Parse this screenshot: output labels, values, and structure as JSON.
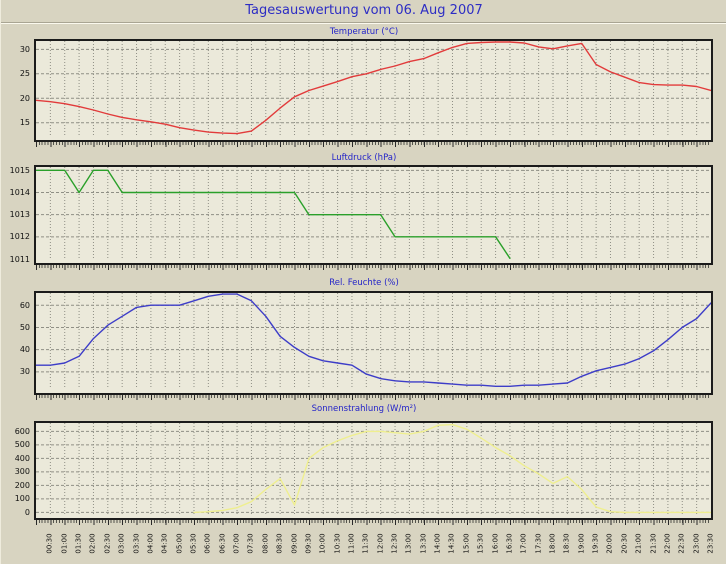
{
  "page": {
    "title": "Tagesauswertung vom 06. Aug 2007",
    "date": "06. Aug 2007"
  },
  "colors": {
    "page_background": "#d8d4c1",
    "plot_background": "#ebe9da",
    "grid": "#8f8f85",
    "title_blue": "#2d2dc4",
    "temperature_line": "#e23b3b",
    "pressure_line": "#2aa02a",
    "humidity_line": "#3d3dc8",
    "radiation_line": "#efef8f"
  },
  "time_labels": [
    "00:30",
    "01:00",
    "01:30",
    "02:00",
    "02:30",
    "03:00",
    "03:30",
    "04:00",
    "04:30",
    "05:00",
    "05:30",
    "06:00",
    "06:30",
    "07:00",
    "07:30",
    "08:00",
    "08:30",
    "09:00",
    "09:30",
    "10:00",
    "10:30",
    "11:00",
    "11:30",
    "12:00",
    "12:30",
    "13:00",
    "13:30",
    "14:00",
    "14:30",
    "15:00",
    "15:30",
    "16:00",
    "16:30",
    "17:00",
    "17:30",
    "18:00",
    "18:30",
    "19:00",
    "19:30",
    "20:00",
    "20:30",
    "21:00",
    "21:30",
    "22:00",
    "22:30",
    "23:00",
    "23:30"
  ],
  "chart_data": [
    {
      "type": "line",
      "title": "Temperatur (°C)",
      "unit": "°C",
      "color": "#e23b3b",
      "x_start": "00:00",
      "x_interval_min": 30,
      "ymin": 12.3,
      "ymax": 31.7,
      "yticks": [
        15,
        20,
        25,
        30
      ],
      "values": [
        19.6,
        19.3,
        18.9,
        18.3,
        17.6,
        16.8,
        16.1,
        15.6,
        15.2,
        14.7,
        14.0,
        13.5,
        13.1,
        12.9,
        12.8,
        13.3,
        15.5,
        18.0,
        20.3,
        21.6,
        22.5,
        23.4,
        24.4,
        25.0,
        25.9,
        26.6,
        27.5,
        28.1,
        29.3,
        30.4,
        31.2,
        31.4,
        31.5,
        31.5,
        31.3,
        30.5,
        30.1,
        30.7,
        31.2,
        26.9,
        25.4,
        24.3,
        23.2,
        22.8,
        22.7,
        22.7,
        22.4,
        21.6
      ]
    },
    {
      "type": "line",
      "title": "Luftdruck (hPa)",
      "unit": "hPa",
      "color": "#2aa02a",
      "x_start": "00:00",
      "x_interval_min": 30,
      "ymin": 1011,
      "ymax": 1015.15,
      "yticks": [
        1011,
        1012,
        1013,
        1014,
        1015
      ],
      "values": [
        1015,
        1015,
        1015,
        1014,
        1015,
        1015,
        1014,
        1014,
        1014,
        1014,
        1014,
        1014,
        1014,
        1014,
        1014,
        1014,
        1014,
        1014,
        1014,
        1013,
        1013,
        1013,
        1013,
        1013,
        1013,
        1012,
        1012,
        1012,
        1012,
        1012,
        1012,
        1012,
        1012,
        1011,
        null,
        null,
        null,
        null,
        null,
        null,
        null,
        null,
        null,
        null,
        null,
        null,
        null,
        null
      ]
    },
    {
      "type": "line",
      "title": "Rel. Feuchte (%)",
      "unit": "%",
      "color": "#3d3dc8",
      "x_start": "00:00",
      "x_interval_min": 30,
      "ymin": 22.3,
      "ymax": 65.5,
      "yticks": [
        30,
        40,
        50,
        60
      ],
      "values": [
        33,
        33,
        34,
        37,
        45,
        51,
        55,
        59,
        60,
        60,
        60,
        62,
        64,
        65,
        65,
        62,
        55,
        46,
        41,
        37,
        35,
        34,
        33,
        29,
        27,
        26,
        25.5,
        25.5,
        25,
        24.5,
        24,
        24,
        23.5,
        23.5,
        24,
        24,
        24.5,
        25,
        28,
        30.5,
        32,
        33.5,
        36,
        39.5,
        44.5,
        50,
        54,
        61
      ]
    },
    {
      "type": "line",
      "title": "Sonnenstrahlung (W/m²)",
      "unit": "W/m²",
      "color": "#efef8f",
      "x_start": "00:00",
      "x_interval_min": 30,
      "ymin": -12,
      "ymax": 662,
      "yticks": [
        0,
        100,
        200,
        300,
        400,
        500,
        600
      ],
      "values": [
        null,
        null,
        null,
        null,
        null,
        null,
        null,
        null,
        null,
        null,
        null,
        0,
        5,
        15,
        35,
        80,
        170,
        250,
        55,
        400,
        480,
        530,
        570,
        600,
        600,
        590,
        580,
        600,
        645,
        650,
        615,
        550,
        480,
        420,
        345,
        285,
        215,
        265,
        170,
        40,
        5,
        0,
        0,
        0,
        0,
        0,
        0,
        0
      ]
    }
  ]
}
